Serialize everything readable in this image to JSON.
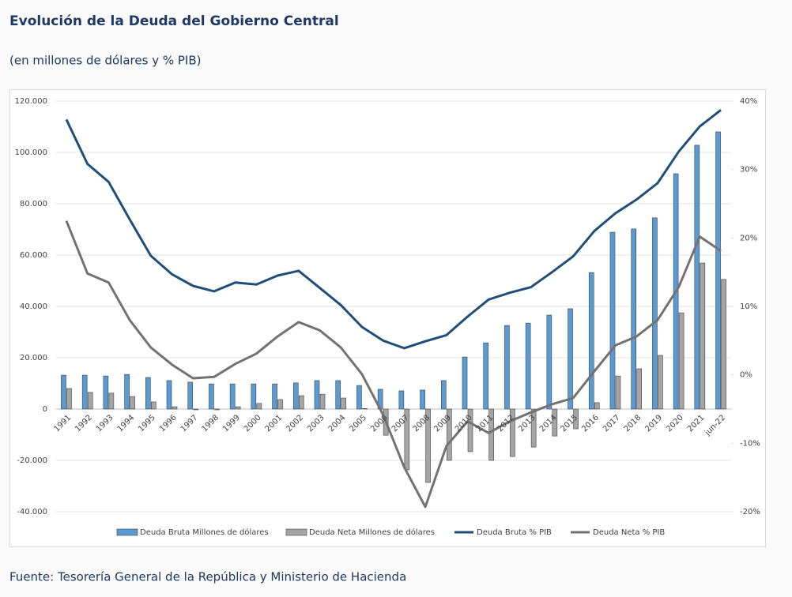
{
  "chart_data": {
    "type": "combo",
    "title": "Evolución de la Deuda del Gobierno Central",
    "subtitle": "(en millones de dólares y % PIB)",
    "source": "Fuente: Tesorería General de la República y Ministerio de Hacienda",
    "categories": [
      "1991",
      "1992",
      "1993",
      "1994",
      "1995",
      "1996",
      "1997",
      "1998",
      "1999",
      "2000",
      "2001",
      "2002",
      "2003",
      "2004",
      "2005",
      "2006",
      "2007",
      "2008",
      "2009",
      "2010",
      "2011",
      "2012",
      "2013",
      "2014",
      "2015",
      "2016",
      "2017",
      "2018",
      "2019",
      "2020",
      "2021",
      "jun-22"
    ],
    "ylim": [
      -40000,
      120000
    ],
    "yticks": [
      {
        "value": -40000,
        "label": "-40.000"
      },
      {
        "value": -20000,
        "label": "-20.000"
      },
      0,
      {
        "value": 20000,
        "label": "20.000"
      },
      {
        "value": 40000,
        "label": "40.000"
      },
      {
        "value": 60000,
        "label": "60.000"
      },
      {
        "value": 80000,
        "label": "80.000"
      },
      {
        "value": 100000,
        "label": "100.000"
      },
      {
        "value": 120000,
        "label": "120.000"
      }
    ],
    "y2lim": [
      -20,
      40
    ],
    "y2ticks": [
      {
        "value": -20,
        "label": "-20%"
      },
      {
        "value": -10,
        "label": "-10%"
      },
      {
        "value": 0,
        "label": "0%"
      },
      {
        "value": 10,
        "label": "10%"
      },
      {
        "value": 20,
        "label": "20%"
      },
      {
        "value": 30,
        "label": "30%"
      },
      {
        "value": 40,
        "label": "40%"
      }
    ],
    "grid": true,
    "legend": "bottom",
    "series": [
      {
        "name": "Deuda Bruta Millones de dólares",
        "kind": "bar",
        "color": "#5b9bd5",
        "values": [
          13200,
          13200,
          12900,
          13500,
          12300,
          11100,
          10500,
          9800,
          9800,
          9800,
          9800,
          10200,
          11100,
          11100,
          9200,
          7700,
          7100,
          7400,
          11100,
          20300,
          25800,
          32600,
          33500,
          36600,
          39100,
          53200,
          68900,
          70200,
          74500,
          91700,
          102800,
          108000
        ]
      },
      {
        "name": "Deuda Neta Millones de dólares",
        "kind": "bar",
        "color": "#a5a5a5",
        "values": [
          8000,
          6500,
          6200,
          4900,
          2800,
          900,
          -300,
          -300,
          900,
          2200,
          3700,
          5200,
          5800,
          4300,
          200,
          -10200,
          -23700,
          -28600,
          -20000,
          -16600,
          -20000,
          -18500,
          -14800,
          -10500,
          -7700,
          2500,
          12900,
          15700,
          20900,
          37500,
          56900,
          50500
        ]
      },
      {
        "name": "Deuda Bruta % PIB",
        "kind": "line",
        "axis": "y2",
        "color": "#1f4e79",
        "values": [
          37.3,
          30.8,
          28.2,
          22.7,
          17.4,
          14.7,
          13.0,
          12.2,
          13.5,
          13.2,
          14.5,
          15.2,
          12.7,
          10.2,
          7.0,
          5.0,
          3.9,
          4.9,
          5.8,
          8.5,
          11.0,
          12.0,
          12.8,
          15.0,
          17.3,
          21.0,
          23.6,
          25.6,
          28.0,
          32.6,
          36.3,
          38.7
        ]
      },
      {
        "name": "Deuda Neta % PIB",
        "kind": "line",
        "axis": "y2",
        "color": "#767171",
        "values": [
          22.5,
          14.8,
          13.5,
          8.0,
          4.0,
          1.5,
          -0.5,
          -0.3,
          1.6,
          3.1,
          5.6,
          7.7,
          6.5,
          4.0,
          0.1,
          -5.8,
          -13.5,
          -19.3,
          -10.4,
          -6.8,
          -8.5,
          -6.8,
          -5.5,
          -4.3,
          -3.4,
          0.5,
          4.3,
          5.6,
          8.0,
          12.8,
          20.2,
          18.1
        ]
      }
    ]
  }
}
